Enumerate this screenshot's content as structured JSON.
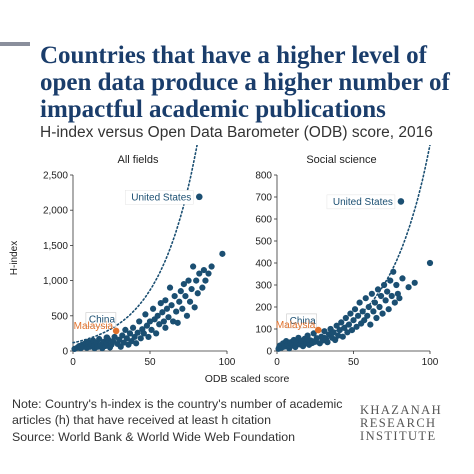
{
  "header": {
    "title": "Countries that have a higher level of open data produce a higher number of impactful academic publications",
    "subtitle": "H-index versus Open Data Barometer (ODB) score, 2016"
  },
  "footer": {
    "note": "Note: Country's h-index is the country's number of academic articles (h) that have received at least h citation",
    "source": "Source: World Bank & World Wide Web Foundation",
    "logo_lines": [
      "KHAZANAH",
      "RESEARCH",
      "INSTITUTE"
    ]
  },
  "colors": {
    "point": "#1b4f72",
    "highlight": "#e0712c",
    "axis": "#333333",
    "title": "#1a3d6b"
  },
  "chart_data": [
    {
      "type": "scatter",
      "title": "All fields",
      "xlabel": "ODB scaled score",
      "ylabel": "H-index",
      "xlim": [
        0,
        100
      ],
      "ylim": [
        0,
        2500
      ],
      "xticks": [
        0,
        50,
        100
      ],
      "yticks": [
        0,
        500,
        1000,
        1500,
        2000,
        2500
      ],
      "ytick_labels": [
        "0",
        "500",
        "1,000",
        "1,500",
        "2,000",
        "2,500"
      ],
      "grid": false,
      "trendline": "dotted",
      "trend": {
        "a": 0.047,
        "b": 0.0399
      },
      "labeled_points": [
        {
          "label": "United States",
          "x": 82,
          "y": 2190,
          "highlight": false
        },
        {
          "label": "China",
          "x": 22,
          "y": 190,
          "highlight": false
        },
        {
          "label": "Malaysia",
          "x": 28,
          "y": 285,
          "highlight": true
        }
      ],
      "points": [
        [
          1,
          30
        ],
        [
          3,
          50
        ],
        [
          4,
          70
        ],
        [
          5,
          40
        ],
        [
          6,
          90
        ],
        [
          7,
          60
        ],
        [
          8,
          110
        ],
        [
          9,
          45
        ],
        [
          10,
          80
        ],
        [
          10,
          130
        ],
        [
          11,
          60
        ],
        [
          12,
          100
        ],
        [
          13,
          150
        ],
        [
          14,
          40
        ],
        [
          14,
          80
        ],
        [
          15,
          120
        ],
        [
          16,
          60
        ],
        [
          17,
          170
        ],
        [
          18,
          90
        ],
        [
          19,
          40
        ],
        [
          20,
          130
        ],
        [
          21,
          70
        ],
        [
          22,
          110
        ],
        [
          23,
          160
        ],
        [
          24,
          50
        ],
        [
          25,
          90
        ],
        [
          26,
          140
        ],
        [
          27,
          200
        ],
        [
          29,
          100
        ],
        [
          30,
          160
        ],
        [
          31,
          60
        ],
        [
          32,
          220
        ],
        [
          33,
          120
        ],
        [
          34,
          300
        ],
        [
          35,
          180
        ],
        [
          36,
          90
        ],
        [
          37,
          250
        ],
        [
          38,
          140
        ],
        [
          39,
          330
        ],
        [
          40,
          200
        ],
        [
          41,
          110
        ],
        [
          42,
          260
        ],
        [
          43,
          420
        ],
        [
          44,
          180
        ],
        [
          45,
          310
        ],
        [
          46,
          250
        ],
        [
          47,
          520
        ],
        [
          48,
          360
        ],
        [
          49,
          200
        ],
        [
          50,
          420
        ],
        [
          51,
          300
        ],
        [
          52,
          600
        ],
        [
          53,
          450
        ],
        [
          54,
          250
        ],
        [
          55,
          500
        ],
        [
          56,
          380
        ],
        [
          57,
          680
        ],
        [
          58,
          550
        ],
        [
          59,
          420
        ],
        [
          60,
          330
        ],
        [
          60,
          720
        ],
        [
          61,
          600
        ],
        [
          62,
          480
        ],
        [
          63,
          900
        ],
        [
          64,
          650
        ],
        [
          65,
          420
        ],
        [
          66,
          780
        ],
        [
          67,
          560
        ],
        [
          68,
          400
        ],
        [
          69,
          700
        ],
        [
          70,
          850
        ],
        [
          71,
          600
        ],
        [
          72,
          950
        ],
        [
          73,
          780
        ],
        [
          74,
          500
        ],
        [
          75,
          1000
        ],
        [
          76,
          700
        ],
        [
          77,
          880
        ],
        [
          78,
          1200
        ],
        [
          79,
          620
        ],
        [
          80,
          1000
        ],
        [
          81,
          820
        ],
        [
          82,
          1100
        ],
        [
          84,
          900
        ],
        [
          85,
          1150
        ],
        [
          86,
          1000
        ],
        [
          88,
          1100
        ],
        [
          90,
          1200
        ],
        [
          97,
          1380
        ]
      ]
    },
    {
      "type": "scatter",
      "title": "Social science",
      "xlabel": "ODB scaled score",
      "ylabel": "",
      "xlim": [
        0,
        100
      ],
      "ylim": [
        0,
        800
      ],
      "xticks": [
        0,
        50,
        100
      ],
      "yticks": [
        0,
        100,
        200,
        300,
        400,
        500,
        600,
        700,
        800
      ],
      "ytick_labels": [
        "0",
        "100",
        "200",
        "300",
        "400",
        "500",
        "600",
        "700",
        "800"
      ],
      "grid": false,
      "trendline": "dotted",
      "trend": {
        "a": 0.027,
        "b": 0.0377
      },
      "labeled_points": [
        {
          "label": "United States",
          "x": 81,
          "y": 680,
          "highlight": false
        },
        {
          "label": "China",
          "x": 20,
          "y": 55,
          "highlight": false
        },
        {
          "label": "Malaysia",
          "x": 27,
          "y": 95,
          "highlight": true
        }
      ],
      "points": [
        [
          1,
          10
        ],
        [
          2,
          25
        ],
        [
          3,
          15
        ],
        [
          4,
          35
        ],
        [
          5,
          20
        ],
        [
          6,
          45
        ],
        [
          7,
          28
        ],
        [
          8,
          12
        ],
        [
          9,
          40
        ],
        [
          10,
          25
        ],
        [
          11,
          50
        ],
        [
          12,
          18
        ],
        [
          13,
          38
        ],
        [
          14,
          60
        ],
        [
          15,
          30
        ],
        [
          16,
          45
        ],
        [
          17,
          22
        ],
        [
          18,
          55
        ],
        [
          19,
          35
        ],
        [
          20,
          70
        ],
        [
          21,
          28
        ],
        [
          22,
          48
        ],
        [
          23,
          36
        ],
        [
          24,
          80
        ],
        [
          25,
          42
        ],
        [
          26,
          58
        ],
        [
          28,
          35
        ],
        [
          29,
          65
        ],
        [
          30,
          48
        ],
        [
          31,
          90
        ],
        [
          32,
          55
        ],
        [
          33,
          40
        ],
        [
          34,
          75
        ],
        [
          35,
          100
        ],
        [
          36,
          60
        ],
        [
          37,
          85
        ],
        [
          38,
          50
        ],
        [
          39,
          115
        ],
        [
          40,
          70
        ],
        [
          41,
          95
        ],
        [
          42,
          130
        ],
        [
          43,
          65
        ],
        [
          44,
          105
        ],
        [
          45,
          150
        ],
        [
          46,
          85
        ],
        [
          47,
          120
        ],
        [
          48,
          170
        ],
        [
          49,
          95
        ],
        [
          50,
          140
        ],
        [
          51,
          190
        ],
        [
          52,
          110
        ],
        [
          53,
          160
        ],
        [
          54,
          220
        ],
        [
          55,
          125
        ],
        [
          56,
          180
        ],
        [
          57,
          140
        ],
        [
          58,
          240
        ],
        [
          59,
          160
        ],
        [
          60,
          200
        ],
        [
          61,
          120
        ],
        [
          62,
          260
        ],
        [
          63,
          180
        ],
        [
          64,
          220
        ],
        [
          65,
          150
        ],
        [
          66,
          280
        ],
        [
          67,
          200
        ],
        [
          68,
          250
        ],
        [
          69,
          170
        ],
        [
          70,
          300
        ],
        [
          71,
          230
        ],
        [
          72,
          270
        ],
        [
          73,
          190
        ],
        [
          74,
          320
        ],
        [
          75,
          250
        ],
        [
          76,
          360
        ],
        [
          77,
          220
        ],
        [
          78,
          300
        ],
        [
          79,
          260
        ],
        [
          80,
          240
        ],
        [
          82,
          330
        ],
        [
          86,
          290
        ],
        [
          90,
          310
        ],
        [
          100,
          400
        ]
      ]
    }
  ]
}
